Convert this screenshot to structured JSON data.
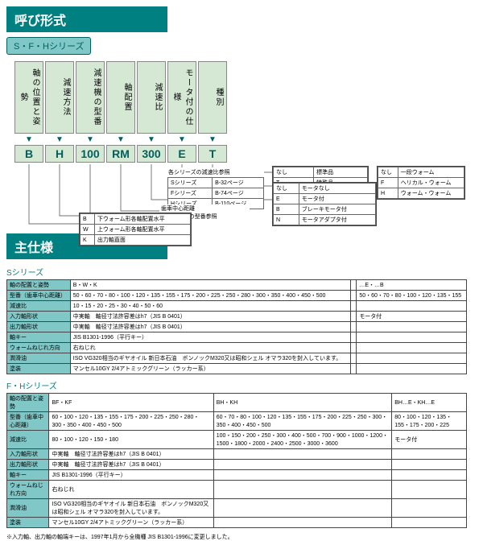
{
  "title1": "呼び形式",
  "series_tab": "S・F・Hシリーズ",
  "columns": [
    {
      "label": "軸の位置と姿勢",
      "code": "B"
    },
    {
      "label": "減速方法",
      "code": "H"
    },
    {
      "label": "減速機の型番",
      "code": "100"
    },
    {
      "label": "軸配置",
      "code": "RM"
    },
    {
      "label": "減速比",
      "code": "300"
    },
    {
      "label": "モータ付の仕様",
      "code": "E"
    },
    {
      "label": "種別",
      "code": "T"
    }
  ],
  "legend_type": {
    "rows": [
      [
        "なし",
        "標準品"
      ],
      [
        "T",
        "特殊品"
      ]
    ]
  },
  "legend_motor": {
    "rows": [
      [
        "なし",
        "モータなし"
      ],
      [
        "E",
        "モータ付"
      ],
      [
        "B",
        "ブレーキモータ付"
      ],
      [
        "N",
        "モータアダプタ付"
      ]
    ]
  },
  "legend_ratio": {
    "title": "各シリーズの減速比参照",
    "rows": [
      [
        "Sシリーズ",
        "B-32ページ"
      ],
      [
        "Fシリーズ",
        "B-74ページ"
      ],
      [
        "Hシリーズ",
        "B-110ページ"
      ]
    ]
  },
  "legend_model": {
    "title": "歯車中心距離",
    "sub": "各シリーズの型番参照"
  },
  "legend_method": {
    "rows": [
      [
        "なし",
        "一段ウォーム"
      ],
      [
        "F",
        "ヘリカル・ウォーム"
      ],
      [
        "H",
        "ウォーム・ウォーム"
      ]
    ]
  },
  "legend_pos": {
    "rows": [
      [
        "B",
        "下ウォーム形各軸配置水平"
      ],
      [
        "W",
        "上ウォーム形各軸配置水平"
      ],
      [
        "K",
        "出力軸直面"
      ]
    ]
  },
  "title2": "主仕様",
  "s_label": "Sシリーズ",
  "s_rows": [
    [
      "軸の配置と姿勢",
      "B・W・K",
      "",
      "…E・…B"
    ],
    [
      "型番（歯車中心距離）",
      "50・60・70・80・100・120・135・155・175・200・225・250・280・300・350・400・450・500",
      "",
      "50・60・70・80・100・120・135・155"
    ],
    [
      "減速比",
      "10・15・20・25・30・40・50・60",
      "",
      ""
    ],
    [
      "入力軸形状",
      "中実軸　軸径寸法許容差はh7（JIS B 0401）",
      "",
      "モータ付"
    ],
    [
      "出力軸形状",
      "中実軸　軸径寸法許容差はh7（JIS B 0401）",
      "",
      ""
    ],
    [
      "軸キー",
      "JIS B1301-1996（平行キー）",
      "",
      ""
    ],
    [
      "ウォームねじれ方向",
      "右ねじれ",
      "",
      ""
    ],
    [
      "潤滑油",
      "ISO VG320相当のギヤオイル\n新日本石油　ボンノックM320又は昭和シェル オマラ320を封入しています。",
      "",
      ""
    ],
    [
      "塗装",
      "マンセル10GY 2/4アトミックグリーン（ラッカー系）",
      "",
      ""
    ]
  ],
  "fh_label": "F・Hシリーズ",
  "fh_rows": [
    [
      "軸の配置と姿勢",
      "BF・KF",
      "BH・KH",
      "BH…E・KH…E"
    ],
    [
      "型番（歯車中心距離）",
      "60・100・120・135・155・175・200・225・250・280・300・350・400・450・500",
      "60・70・80・100・120・135・155・175・200・225・250・300・350・400・450・500",
      "80・100・120・135・155・175・200・225"
    ],
    [
      "減速比",
      "80・100・120・150・180",
      "100・150・200・250・300・400・500・700・900・1000・1200・1500・1800・2000・2400・2500・3000・3600",
      "モータ付"
    ],
    [
      "入力軸形状",
      "中実軸　軸径寸法許容差はh7（JIS B 0401）",
      "",
      ""
    ],
    [
      "出力軸形状",
      "中実軸　軸径寸法許容差はh7（JIS B 0401）",
      "",
      ""
    ],
    [
      "軸キー",
      "JIS B1301-1996（平行キー）",
      "",
      ""
    ],
    [
      "ウォームねじれ方向",
      "右ねじれ",
      "",
      ""
    ],
    [
      "潤滑油",
      "ISO VG320相当のギヤオイル\n新日本石油　ボンノックM320又は昭和シェル オマラ320を封入しています。",
      "",
      ""
    ],
    [
      "塗装",
      "マンセル10GY 2/4アトミックグリーン（ラッカー系）",
      "",
      ""
    ]
  ],
  "footnote": "※入力軸、出力軸の軸端キーは、1997年1月から全機種 JIS B1301-1996に変更しました。",
  "colors": {
    "teal": "#008080",
    "ltgreen": "#d4e8d4",
    "ltteal": "#80c8c8"
  }
}
